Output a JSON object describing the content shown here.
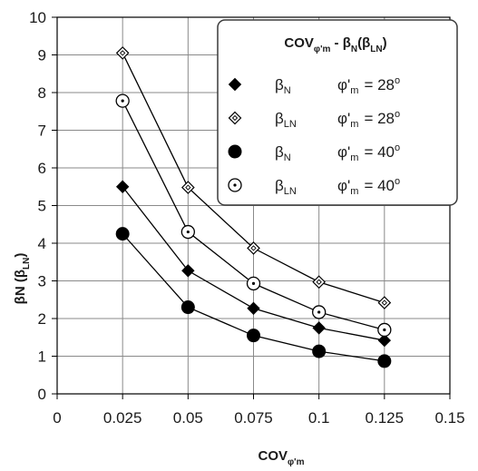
{
  "chart_data": {
    "type": "line",
    "title": "",
    "xlabel": {
      "main": "COV",
      "sub": "φ'm"
    },
    "ylabel": {
      "main": "βN (β",
      "sub": "LN",
      "tail": ")"
    },
    "xlim": [
      0,
      0.15
    ],
    "ylim": [
      0,
      10
    ],
    "x_ticks": [
      "0",
      "0.025",
      "0.05",
      "0.075",
      "0.1",
      "0.125",
      "0.15"
    ],
    "y_ticks": [
      "0",
      "1",
      "2",
      "3",
      "4",
      "5",
      "6",
      "7",
      "8",
      "9",
      "10"
    ],
    "grid": true,
    "x": [
      0.025,
      0.05,
      0.075,
      0.1,
      0.125
    ],
    "legend": {
      "placement": "top-right",
      "title": {
        "main": "COV",
        "sub": "φ'm",
        "mid": " - β",
        "sub2": "N",
        "tail_open": "(β",
        "sub3": "LN",
        "tail_close": ")"
      }
    },
    "series": [
      {
        "symbol": "β",
        "symbol_sub": "N",
        "phi_label": "φ'",
        "phi_sub": "m",
        "phi_value": "= 28",
        "phi_unit": "o",
        "marker": "filled-diamond",
        "values": [
          5.5,
          3.27,
          2.27,
          1.75,
          1.42
        ]
      },
      {
        "symbol": "β",
        "symbol_sub": "LN",
        "phi_label": "φ'",
        "phi_sub": "m",
        "phi_value": "= 28",
        "phi_unit": "o",
        "marker": "open-diamond",
        "values": [
          9.05,
          5.48,
          3.87,
          2.97,
          2.42
        ]
      },
      {
        "symbol": "β",
        "symbol_sub": "N",
        "phi_label": "φ'",
        "phi_sub": "m",
        "phi_value": "= 40",
        "phi_unit": "o",
        "marker": "filled-circle",
        "values": [
          4.25,
          2.3,
          1.55,
          1.13,
          0.87
        ]
      },
      {
        "symbol": "β",
        "symbol_sub": "LN",
        "phi_label": "φ'",
        "phi_sub": "m",
        "phi_value": "= 40",
        "phi_unit": "o",
        "marker": "dotted-circle",
        "values": [
          7.78,
          4.3,
          2.93,
          2.17,
          1.7
        ]
      }
    ],
    "colors": {
      "line": "#000000",
      "grid": "#8a8a8a",
      "marker_fill": "#000000"
    }
  }
}
